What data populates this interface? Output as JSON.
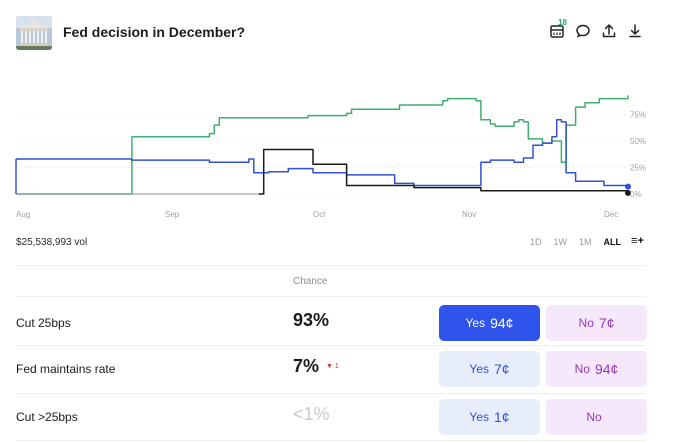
{
  "header": {
    "title": "Fed decision in December?",
    "comments_badge": "18"
  },
  "chart_data": {
    "type": "line",
    "x_labels": [
      "Aug",
      "Sep",
      "Oct",
      "Nov",
      "Dec"
    ],
    "y_ticks": [
      "0%",
      "25%",
      "50%",
      "75%"
    ],
    "ylim": [
      0,
      100
    ],
    "grid": true,
    "series": [
      {
        "color": "#3fae70",
        "x": [
          "Aug 23",
          "Aug 29",
          "Aug 30",
          "Sep 10",
          "Sep 11",
          "Sep 12",
          "Sep 20",
          "Sep 30",
          "Oct 8",
          "Oct 9",
          "Oct 18",
          "Oct 19",
          "Oct 28",
          "Oct 29",
          "Nov 4",
          "Nov 5",
          "Nov 7",
          "Nov 8",
          "Nov 12",
          "Nov 13",
          "Nov 14",
          "Nov 15",
          "Nov 18",
          "Nov 20",
          "Nov 22",
          "Nov 23",
          "Nov 25",
          "Nov 27",
          "Nov 30",
          "Dec 6"
        ],
        "values": [
          0,
          0,
          54,
          57,
          65,
          72,
          72,
          74,
          76,
          80,
          80,
          84,
          88,
          90,
          88,
          70,
          66,
          64,
          68,
          70,
          68,
          52,
          48,
          50,
          30,
          65,
          82,
          86,
          90,
          93
        ]
      },
      {
        "color": "#3352d1",
        "x": [
          "Aug 23",
          "Aug 30",
          "Sep 10",
          "Sep 14",
          "Sep 18",
          "Sep 19",
          "Sep 22",
          "Sep 26",
          "Oct 1",
          "Oct 8",
          "Oct 18",
          "Oct 22",
          "Nov 3",
          "Nov 5",
          "Nov 7",
          "Nov 12",
          "Nov 14",
          "Nov 16",
          "Nov 18",
          "Nov 20",
          "Nov 21",
          "Nov 22",
          "Nov 23",
          "Nov 25",
          "Dec 1",
          "Dec 6"
        ],
        "values": [
          33,
          32,
          30,
          30,
          33,
          20,
          21,
          24,
          20,
          18,
          10,
          8,
          8,
          30,
          32,
          30,
          34,
          46,
          48,
          54,
          70,
          68,
          20,
          12,
          8,
          7
        ]
      },
      {
        "color": "#1a1a1a",
        "x": [
          "Sep 20",
          "Sep 21",
          "Sep 30",
          "Oct 1",
          "Oct 8",
          "Oct 18",
          "Oct 22",
          "Nov 3",
          "Nov 5",
          "Nov 15",
          "Dec 6"
        ],
        "values": [
          0,
          42,
          42,
          28,
          8,
          8,
          6,
          6,
          3,
          3,
          1
        ]
      }
    ]
  },
  "stats": {
    "volume": "$25,538,993 vol"
  },
  "ranges": [
    "1D",
    "1W",
    "1M",
    "ALL"
  ],
  "table": {
    "chance_header": "Chance",
    "rows": [
      {
        "label": "Cut 25bps",
        "chance": "93%",
        "delta": "",
        "yes": "Yes",
        "yes_price": "94¢",
        "no": "No",
        "no_price": "7¢"
      },
      {
        "label": "Fed maintains rate",
        "chance": "7%",
        "delta": "▼ 1",
        "yes": "Yes",
        "yes_price": "7¢",
        "no": "No",
        "no_price": "94¢"
      },
      {
        "label": "Cut >25bps",
        "chance": "<1%",
        "delta": "",
        "yes": "Yes",
        "yes_price": "1¢",
        "no": "No",
        "no_price": ""
      }
    ]
  }
}
